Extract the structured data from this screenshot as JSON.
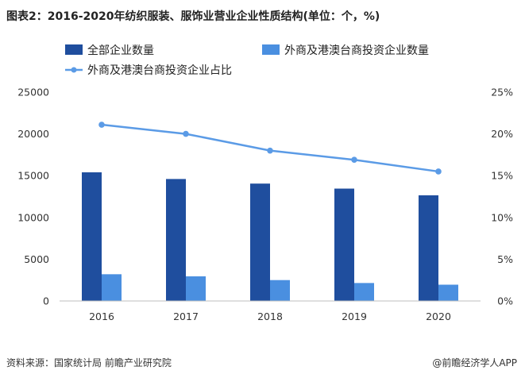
{
  "title": "图表2：2016-2020年纺织服装、服饰业营业企业性质结构(单位：个，%)",
  "source": "资料来源：国家统计局 前瞻产业研究院",
  "brand": "@前瞻经济学人APP",
  "chart_data": {
    "type": "bar",
    "categories": [
      "2016",
      "2017",
      "2018",
      "2019",
      "2020"
    ],
    "series": [
      {
        "name": "全部企业数量",
        "type": "bar",
        "axis": "left",
        "color": "#1f4e9e",
        "values": [
          15400,
          14600,
          14050,
          13450,
          12650
        ]
      },
      {
        "name": "外商及港澳台商投资企业数量",
        "type": "bar",
        "axis": "left",
        "color": "#4a8fe0",
        "values": [
          3200,
          2950,
          2500,
          2150,
          1950
        ]
      },
      {
        "name": "外商及港澳台商投资企业占比",
        "type": "line",
        "axis": "right",
        "color": "#5b9be6",
        "values": [
          21.1,
          20.0,
          18.0,
          16.9,
          15.5
        ]
      }
    ],
    "y_left": {
      "min": 0,
      "max": 25000,
      "ticks": [
        "0",
        "5000",
        "10000",
        "15000",
        "20000",
        "25000"
      ]
    },
    "y_right": {
      "min": 0,
      "max": 25,
      "ticks": [
        "0%",
        "5%",
        "10%",
        "15%",
        "20%",
        "25%"
      ]
    },
    "grid": false,
    "legend_position": "top-left"
  }
}
